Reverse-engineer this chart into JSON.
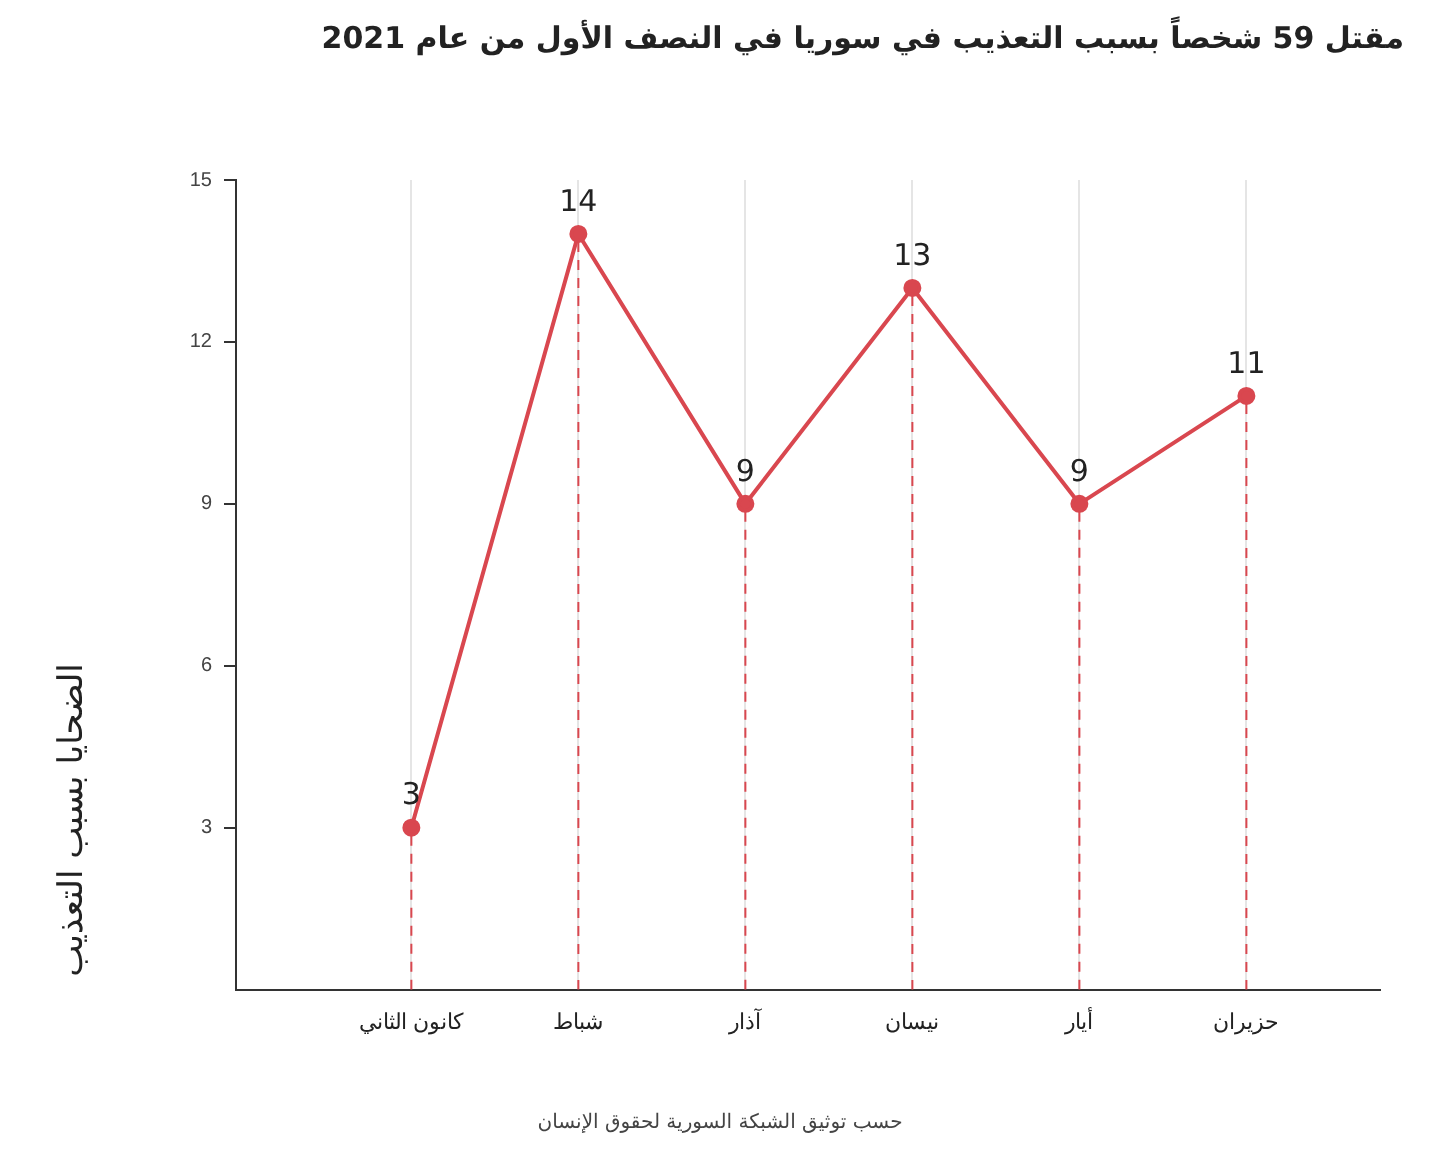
{
  "chart_data": {
    "type": "line",
    "title": "مقتل 59 شخصاً بسبب التعذيب في سوريا في النصف الأول من عام 2021",
    "ylabel": "الضحايا بسبب التعذيب",
    "categories": [
      "كانون الثاني",
      "شباط",
      "آذار",
      "نيسان",
      "أيار",
      "حزيران"
    ],
    "series": [
      {
        "color": "#d9474f",
        "values": [
          3,
          14,
          9,
          13,
          9,
          11
        ]
      }
    ],
    "ylim": [
      0,
      15
    ],
    "yticks": [
      3,
      6,
      9,
      12,
      15
    ],
    "grid": "x",
    "legend": false,
    "marker": "circle",
    "line_style": "solid",
    "data_labels": true,
    "annotations": [
      "حسب توثيق الشبكة السورية لحقوق الإنسان"
    ]
  }
}
